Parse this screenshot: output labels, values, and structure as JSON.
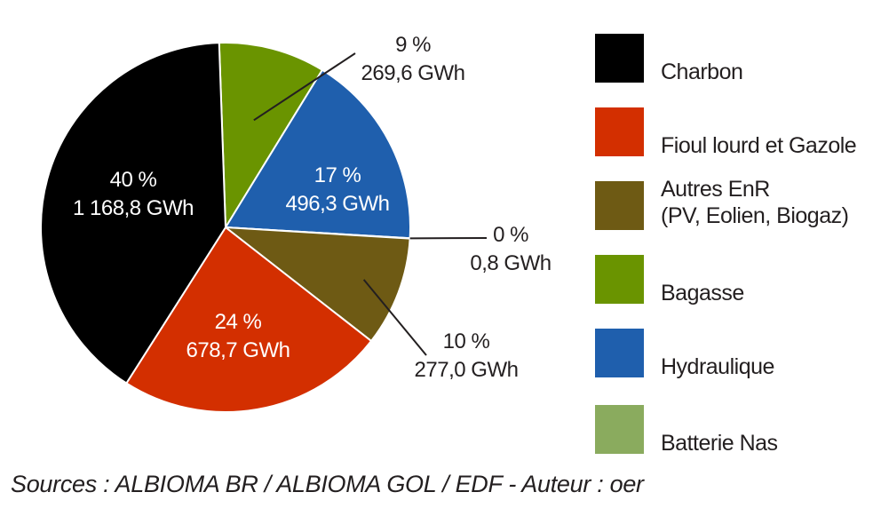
{
  "chart_data": {
    "type": "pie",
    "slices": [
      {
        "name": "Charbon",
        "percent_label": "40 %",
        "value_label": "1 168,8 GWh",
        "value": 1168.8,
        "color": "#000000",
        "label_color": "#ffffff"
      },
      {
        "name": "Fioul lourd et Gazole",
        "percent_label": "24 %",
        "value_label": "678,7 GWh",
        "value": 678.7,
        "color": "#d32f00",
        "label_color": "#ffffff"
      },
      {
        "name": "Autres EnR (PV, Eolien, Biogaz)",
        "percent_label": "10 %",
        "value_label": "277,0 GWh",
        "value": 277.0,
        "color": "#6e5a14",
        "label_color": "#231f20"
      },
      {
        "name": "Batterie Nas",
        "percent_label": "0 %",
        "value_label": "0,8 GWh",
        "value": 0.8,
        "color": "#8aab5e",
        "label_color": "#231f20"
      },
      {
        "name": "Hydraulique",
        "percent_label": "17 %",
        "value_label": "496,3 GWh",
        "value": 496.3,
        "color": "#1f5fad",
        "label_color": "#ffffff"
      },
      {
        "name": "Bagasse",
        "percent_label": "9 %",
        "value_label": "269,6 GWh",
        "value": 269.6,
        "color": "#6a9400",
        "label_color": "#231f20"
      }
    ],
    "unit": "GWh"
  },
  "legend": {
    "items": [
      {
        "label": "Charbon",
        "sub": "",
        "color": "#000000"
      },
      {
        "label": "Fioul lourd et Gazole",
        "sub": "",
        "color": "#d32f00"
      },
      {
        "label": "Autres EnR",
        "sub": "(PV, Eolien, Biogaz)",
        "color": "#6e5a14"
      },
      {
        "label": "Bagasse",
        "sub": "",
        "color": "#6a9400"
      },
      {
        "label": "Hydraulique",
        "sub": "",
        "color": "#1f5fad"
      },
      {
        "label": "Batterie Nas",
        "sub": "",
        "color": "#8aab5e"
      }
    ]
  },
  "source_text": "Sources : ALBIOMA BR / ALBIOMA GOL / EDF - Auteur : oer"
}
